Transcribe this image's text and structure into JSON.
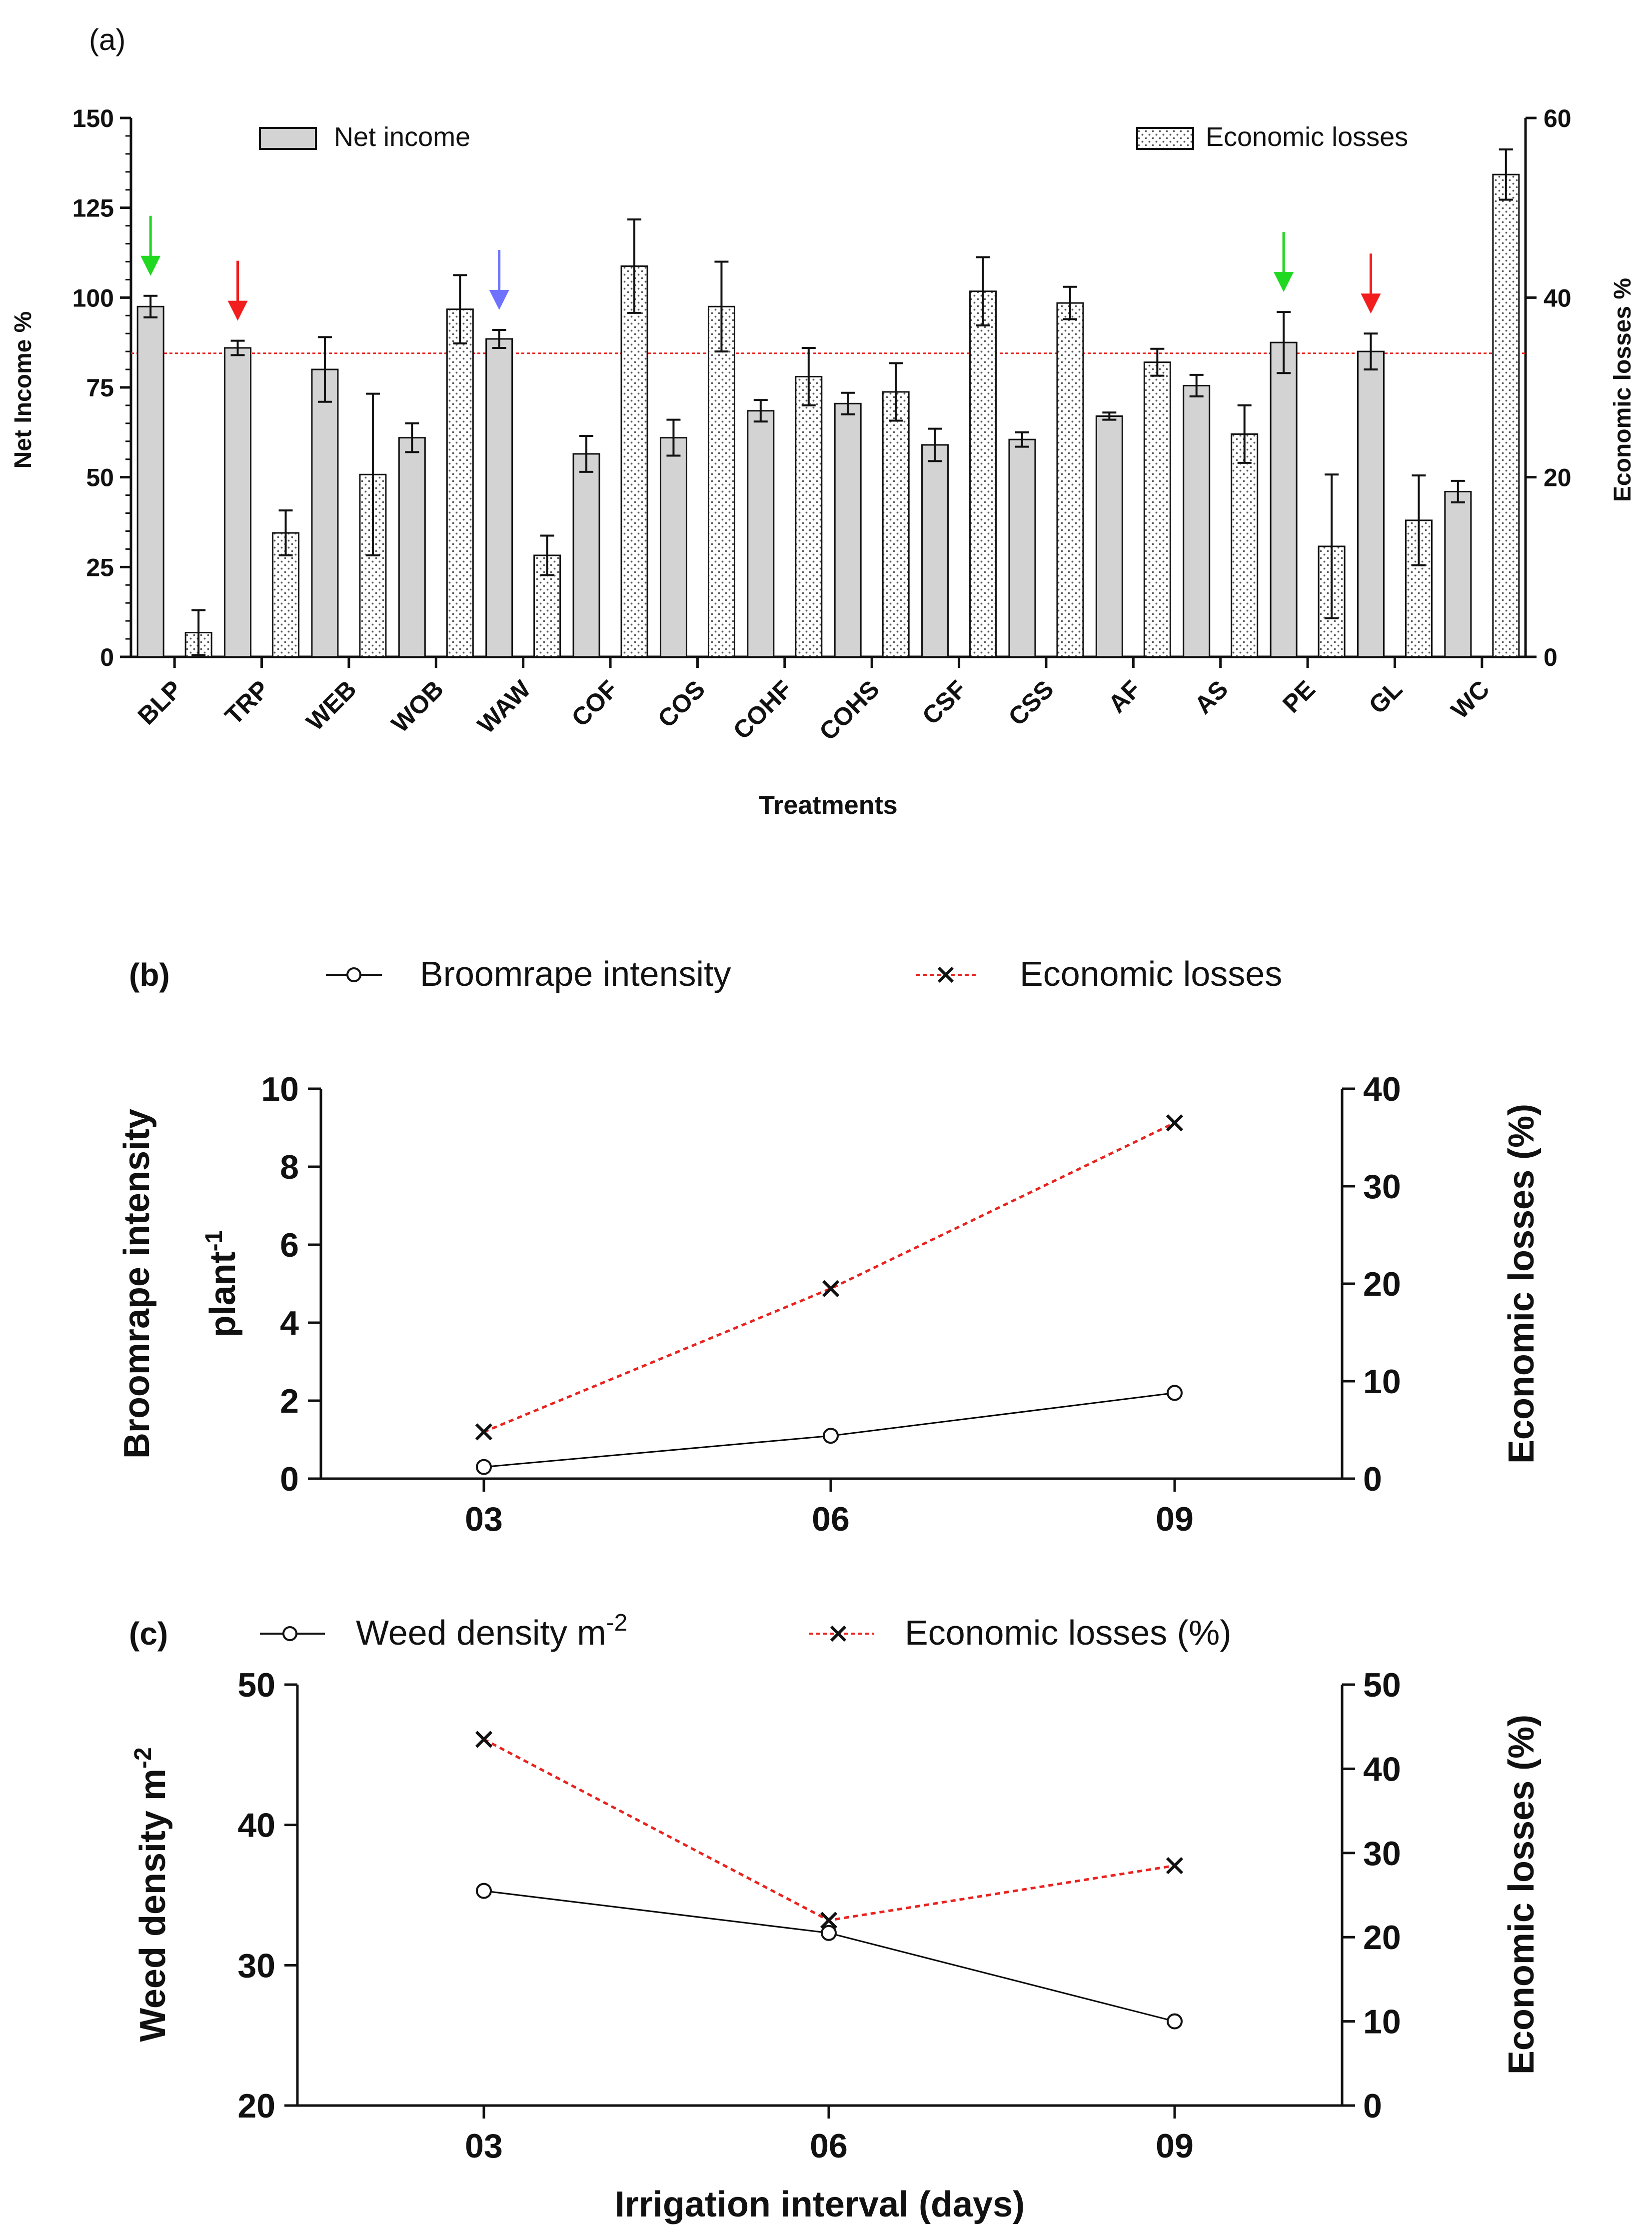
{
  "chart_data": [
    {
      "id": "a",
      "type": "bar",
      "panel_label": "(a)",
      "xlabel": "Treatments",
      "ylabel_left": "Net Income %",
      "ylabel_right": "Economic losses %",
      "ylim_left": [
        0,
        150
      ],
      "ylim_right": [
        0,
        60
      ],
      "yticks_left": [
        "0",
        "25",
        "50",
        "75",
        "100",
        "125",
        "150"
      ],
      "yticks_right": [
        "0",
        "20",
        "40",
        "60"
      ],
      "reference_line_left": 84.5,
      "reference_line_color": "#e8231f",
      "categories": [
        "BLP",
        "TRP",
        "WEB",
        "WOB",
        "WAW",
        "COF",
        "COS",
        "COHF",
        "COHS",
        "CSF",
        "CSS",
        "AF",
        "AS",
        "PE",
        "GL",
        "WC"
      ],
      "series": [
        {
          "name": "Net income",
          "axis": "left",
          "fill": "#d3d3d3",
          "values": [
            97.5,
            86.0,
            80.0,
            61.0,
            88.5,
            56.5,
            61.0,
            68.5,
            70.5,
            59.0,
            60.5,
            67.0,
            75.5,
            87.5,
            85.0,
            46.0
          ],
          "errors": [
            3.0,
            2.0,
            9.0,
            4.0,
            2.5,
            5.0,
            5.0,
            3.0,
            3.0,
            4.5,
            2.0,
            1.0,
            3.0,
            8.5,
            5.0,
            3.0
          ]
        },
        {
          "name": "Economic losses",
          "axis": "right",
          "fill": "dotted",
          "values": [
            2.7,
            13.8,
            20.3,
            38.7,
            11.3,
            43.5,
            39.0,
            31.2,
            29.5,
            40.7,
            39.4,
            32.8,
            24.8,
            12.3,
            15.2,
            53.7
          ],
          "errors": [
            2.5,
            2.5,
            9.0,
            3.8,
            2.2,
            5.2,
            5.0,
            3.2,
            3.2,
            3.8,
            1.8,
            1.5,
            3.2,
            8.0,
            5.0,
            2.8
          ]
        }
      ],
      "arrows": [
        {
          "category": "BLP",
          "color": "#1fd81f"
        },
        {
          "category": "TRP",
          "color": "#f21d1d"
        },
        {
          "category": "WAW",
          "color": "#6f72ff"
        },
        {
          "category": "PE",
          "color": "#1fd81f"
        },
        {
          "category": "GL",
          "color": "#f21d1d"
        }
      ]
    },
    {
      "id": "b",
      "type": "line",
      "panel_label": "(b)",
      "xlabel": "",
      "ylabel_left_line1": "Broomrape intensity",
      "ylabel_left_line2": "plant",
      "ylabel_left_sup": "-1",
      "ylabel_right": "Economic losses (%)",
      "categories": [
        "03",
        "06",
        "09"
      ],
      "ylim_left": [
        0,
        10
      ],
      "ylim_right": [
        0,
        40
      ],
      "yticks_left": [
        "0",
        "2",
        "4",
        "6",
        "8",
        "10"
      ],
      "yticks_right": [
        "0",
        "10",
        "20",
        "30",
        "40"
      ],
      "series": [
        {
          "name": "Broomrape intensity",
          "axis": "left",
          "marker": "circle",
          "color": "#000000",
          "values": [
            0.3,
            1.1,
            2.2
          ]
        },
        {
          "name": "Economic losses",
          "axis": "right",
          "marker": "x",
          "color": "#e8231f",
          "dashed": true,
          "values": [
            4.8,
            19.5,
            36.5
          ]
        }
      ]
    },
    {
      "id": "c",
      "type": "line",
      "panel_label": "(c)",
      "xlabel": "Irrigation interval (days)",
      "ylabel_left": "Weed density m",
      "ylabel_left_sup": "-2",
      "ylabel_right": "Economic losses (%)",
      "categories": [
        "03",
        "06",
        "09"
      ],
      "ylim_left": [
        20,
        50
      ],
      "ylim_right": [
        0,
        50
      ],
      "yticks_left": [
        "20",
        "30",
        "40",
        "50"
      ],
      "yticks_right": [
        "0",
        "10",
        "20",
        "30",
        "40",
        "50"
      ],
      "legend_weed_main": "Weed density m",
      "legend_weed_sup": "-2",
      "legend_losses": "Economic losses (%)",
      "series": [
        {
          "name": "Weed density",
          "axis": "left",
          "marker": "circle",
          "color": "#000000",
          "values": [
            35.3,
            32.3,
            26.0
          ]
        },
        {
          "name": "Economic losses (%)",
          "axis": "right",
          "marker": "x",
          "color": "#e8231f",
          "dashed": true,
          "values": [
            43.5,
            22.0,
            28.5
          ]
        }
      ]
    }
  ]
}
